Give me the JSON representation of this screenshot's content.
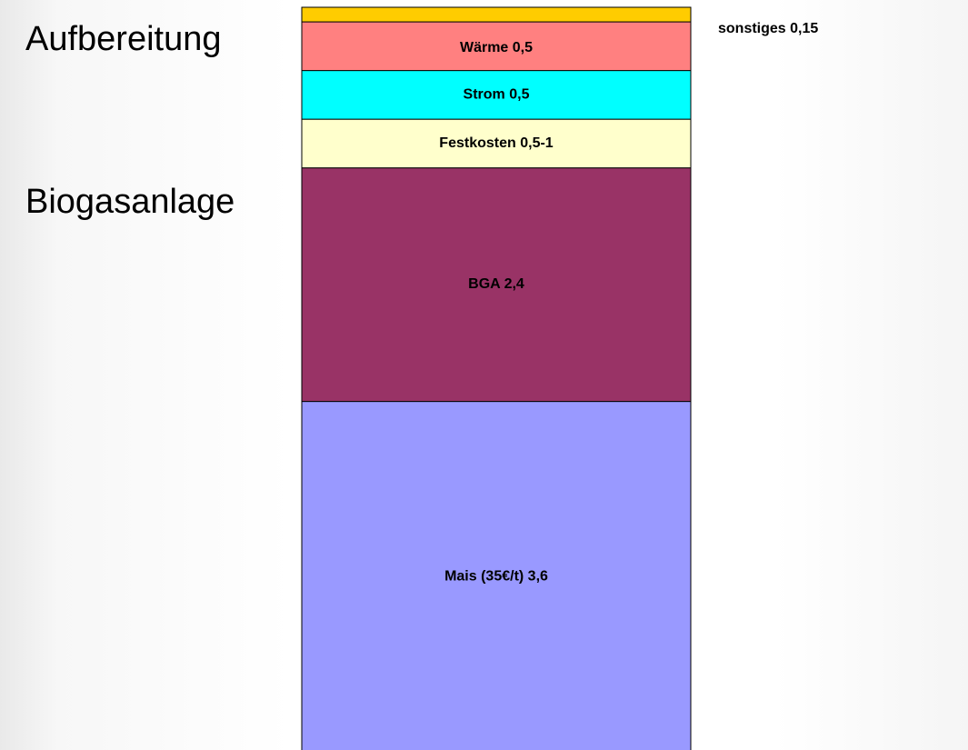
{
  "chart_data": {
    "type": "stacked_bar",
    "annotations": [
      "Aufbereitung",
      "Biogasanlage"
    ],
    "series": [
      {
        "name": "Mais (35€/t)",
        "color": "#9999ff",
        "values": [
          3.6
        ],
        "value_labels": [
          "3,6"
        ]
      },
      {
        "name": "BGA",
        "color": "#993366",
        "values": [
          2.4
        ],
        "value_labels": [
          "2,4"
        ]
      },
      {
        "name": "Festkosten",
        "color": "#ffffcc",
        "values": [
          0.5
        ],
        "value_labels": [
          "0,5-1"
        ]
      },
      {
        "name": "Strom",
        "color": "#00ffff",
        "values": [
          0.5
        ],
        "value_labels": [
          "0,5"
        ]
      },
      {
        "name": "Wärme",
        "color": "#ff8080",
        "values": [
          0.5
        ],
        "value_labels": [
          "0,5"
        ]
      },
      {
        "name": "sonstiges",
        "color": "#ffcc00",
        "values": [
          0.15
        ],
        "value_labels": [
          "0,15"
        ]
      }
    ]
  }
}
